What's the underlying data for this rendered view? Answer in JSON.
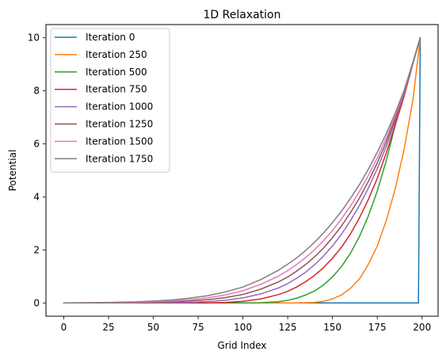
{
  "chart_data": {
    "type": "line",
    "title": "1D Relaxation",
    "xlabel": "Grid Index",
    "ylabel": "Potential",
    "xlim": [
      -9.95,
      208.95
    ],
    "ylim": [
      -0.5,
      10.5
    ],
    "xticks": [
      0,
      25,
      50,
      75,
      100,
      125,
      150,
      175,
      200
    ],
    "yticks": [
      0,
      2,
      4,
      6,
      8,
      10
    ],
    "grid": false,
    "legend_position": "upper-left",
    "x_range": [
      0,
      199
    ],
    "series": [
      {
        "name": "Iteration 0",
        "color": "#1f77b4",
        "points": [
          [
            0,
            0
          ],
          [
            197,
            0
          ],
          [
            198,
            0
          ],
          [
            199,
            10
          ]
        ]
      },
      {
        "name": "Iteration 250",
        "color": "#ff7f0e",
        "points": [
          [
            0,
            0
          ],
          [
            130,
            0
          ],
          [
            140,
            0.02
          ],
          [
            145,
            0.06
          ],
          [
            150,
            0.15
          ],
          [
            155,
            0.3
          ],
          [
            160,
            0.55
          ],
          [
            165,
            0.9
          ],
          [
            170,
            1.45
          ],
          [
            175,
            2.15
          ],
          [
            180,
            3.1
          ],
          [
            185,
            4.3
          ],
          [
            190,
            5.8
          ],
          [
            195,
            7.7
          ],
          [
            199,
            10
          ]
        ]
      },
      {
        "name": "Iteration 500",
        "color": "#2ca02c",
        "points": [
          [
            0,
            0
          ],
          [
            100,
            0
          ],
          [
            110,
            0.01
          ],
          [
            120,
            0.05
          ],
          [
            125,
            0.1
          ],
          [
            130,
            0.18
          ],
          [
            135,
            0.3
          ],
          [
            140,
            0.45
          ],
          [
            145,
            0.68
          ],
          [
            150,
            0.98
          ],
          [
            155,
            1.37
          ],
          [
            160,
            1.87
          ],
          [
            165,
            2.5
          ],
          [
            170,
            3.28
          ],
          [
            175,
            4.22
          ],
          [
            180,
            5.36
          ],
          [
            185,
            6.7
          ],
          [
            190,
            7.9
          ],
          [
            195,
            9.1
          ],
          [
            199,
            10
          ]
        ]
      },
      {
        "name": "Iteration 750",
        "color": "#d62728",
        "points": [
          [
            0,
            0
          ],
          [
            80,
            0
          ],
          [
            90,
            0.02
          ],
          [
            100,
            0.06
          ],
          [
            110,
            0.15
          ],
          [
            120,
            0.32
          ],
          [
            125,
            0.44
          ],
          [
            130,
            0.6
          ],
          [
            135,
            0.8
          ],
          [
            140,
            1.04
          ],
          [
            145,
            1.33
          ],
          [
            150,
            1.69
          ],
          [
            155,
            2.1
          ],
          [
            160,
            2.6
          ],
          [
            165,
            3.2
          ],
          [
            170,
            3.9
          ],
          [
            175,
            4.7
          ],
          [
            180,
            5.65
          ],
          [
            185,
            6.7
          ],
          [
            190,
            7.8
          ],
          [
            195,
            9.05
          ],
          [
            199,
            10
          ]
        ]
      },
      {
        "name": "Iteration 1000",
        "color": "#9467bd",
        "points": [
          [
            0,
            0
          ],
          [
            60,
            0.01
          ],
          [
            70,
            0.02
          ],
          [
            80,
            0.05
          ],
          [
            90,
            0.1
          ],
          [
            100,
            0.19
          ],
          [
            110,
            0.34
          ],
          [
            120,
            0.57
          ],
          [
            125,
            0.73
          ],
          [
            130,
            0.93
          ],
          [
            135,
            1.16
          ],
          [
            140,
            1.44
          ],
          [
            145,
            1.77
          ],
          [
            150,
            2.15
          ],
          [
            155,
            2.59
          ],
          [
            160,
            3.1
          ],
          [
            165,
            3.67
          ],
          [
            170,
            4.33
          ],
          [
            175,
            5.06
          ],
          [
            180,
            5.9
          ],
          [
            185,
            6.84
          ],
          [
            190,
            7.88
          ],
          [
            195,
            9.07
          ],
          [
            199,
            10
          ]
        ]
      },
      {
        "name": "Iteration 1250",
        "color": "#8c564b",
        "points": [
          [
            0,
            0
          ],
          [
            40,
            0.01
          ],
          [
            50,
            0.02
          ],
          [
            60,
            0.04
          ],
          [
            70,
            0.07
          ],
          [
            80,
            0.12
          ],
          [
            90,
            0.2
          ],
          [
            100,
            0.32
          ],
          [
            110,
            0.52
          ],
          [
            120,
            0.8
          ],
          [
            125,
            0.98
          ],
          [
            130,
            1.2
          ],
          [
            135,
            1.45
          ],
          [
            140,
            1.74
          ],
          [
            145,
            2.07
          ],
          [
            150,
            2.46
          ],
          [
            155,
            2.9
          ],
          [
            160,
            3.4
          ],
          [
            165,
            3.95
          ],
          [
            170,
            4.58
          ],
          [
            175,
            5.28
          ],
          [
            180,
            6.07
          ],
          [
            185,
            6.95
          ],
          [
            190,
            7.93
          ],
          [
            195,
            9.07
          ],
          [
            199,
            10
          ]
        ]
      },
      {
        "name": "Iteration 1500",
        "color": "#e377c2",
        "points": [
          [
            0,
            0
          ],
          [
            25,
            0.01
          ],
          [
            40,
            0.02
          ],
          [
            50,
            0.04
          ],
          [
            60,
            0.07
          ],
          [
            70,
            0.12
          ],
          [
            80,
            0.19
          ],
          [
            90,
            0.3
          ],
          [
            100,
            0.46
          ],
          [
            110,
            0.7
          ],
          [
            120,
            1.02
          ],
          [
            125,
            1.22
          ],
          [
            130,
            1.45
          ],
          [
            135,
            1.71
          ],
          [
            140,
            2.01
          ],
          [
            145,
            2.35
          ],
          [
            150,
            2.73
          ],
          [
            155,
            3.17
          ],
          [
            160,
            3.65
          ],
          [
            165,
            4.2
          ],
          [
            170,
            4.8
          ],
          [
            175,
            5.47
          ],
          [
            180,
            6.22
          ],
          [
            185,
            7.05
          ],
          [
            190,
            7.97
          ],
          [
            195,
            9.08
          ],
          [
            199,
            10
          ]
        ]
      },
      {
        "name": "Iteration 1750",
        "color": "#7f7f7f",
        "points": [
          [
            0,
            0
          ],
          [
            25,
            0.02
          ],
          [
            40,
            0.04
          ],
          [
            50,
            0.07
          ],
          [
            60,
            0.11
          ],
          [
            70,
            0.18
          ],
          [
            80,
            0.27
          ],
          [
            90,
            0.41
          ],
          [
            100,
            0.6
          ],
          [
            110,
            0.88
          ],
          [
            120,
            1.24
          ],
          [
            125,
            1.46
          ],
          [
            130,
            1.7
          ],
          [
            135,
            1.98
          ],
          [
            140,
            2.29
          ],
          [
            145,
            2.64
          ],
          [
            150,
            3.03
          ],
          [
            155,
            3.46
          ],
          [
            160,
            3.94
          ],
          [
            165,
            4.46
          ],
          [
            170,
            5.04
          ],
          [
            175,
            5.68
          ],
          [
            180,
            6.38
          ],
          [
            185,
            7.16
          ],
          [
            190,
            8.02
          ],
          [
            195,
            9.1
          ],
          [
            199,
            10
          ]
        ]
      }
    ]
  }
}
